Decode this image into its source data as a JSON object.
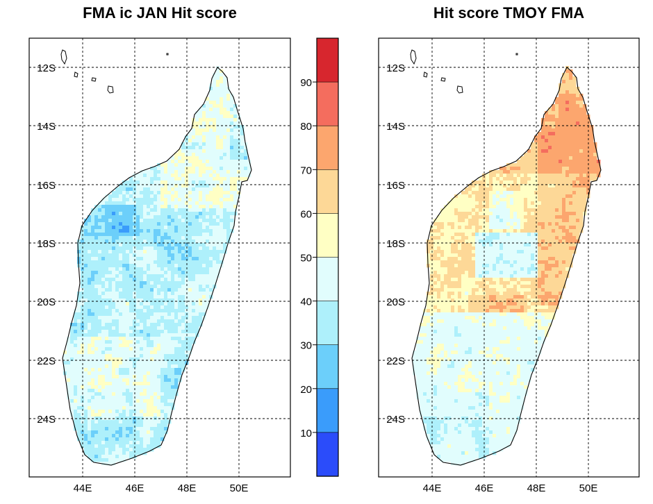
{
  "panels": [
    {
      "id": "left",
      "title": "FMA ic JAN Hit score",
      "lat_labels": [
        "12S",
        "14S",
        "16S",
        "18S",
        "20S",
        "22S",
        "24S"
      ],
      "lon_labels": [
        "44E",
        "46E",
        "48E",
        "50E"
      ],
      "lon_range": [
        42,
        52
      ],
      "lat_range": [
        -26.5,
        -11
      ],
      "dominant_range": "30-50 (blue / light blue), with 50-60 (yellow) patches in the north and south-west"
    },
    {
      "id": "right",
      "title": "Hit score TMOY FMA",
      "lat_labels": [
        "12S",
        "14S",
        "16S",
        "18S",
        "20S",
        "22S",
        "24S"
      ],
      "lon_labels": [
        "44E",
        "46E",
        "48E",
        "50E"
      ],
      "lon_range": [
        42,
        52
      ],
      "lat_range": [
        -26.5,
        -11
      ],
      "dominant_range": "60-70 (light orange) in the north, 70-80 along the north-east, 30-50 (blue) in the south"
    }
  ],
  "colorbar": {
    "labels": [
      "90",
      "80",
      "70",
      "60",
      "50",
      "40",
      "30",
      "20",
      "10"
    ],
    "colors": [
      "#d7262e",
      "#f46d5e",
      "#fca66e",
      "#fdd897",
      "#ffffc4",
      "#e1fdfd",
      "#aef0fb",
      "#6ccffa",
      "#3a9cfb",
      "#2b4cfa"
    ]
  },
  "colors": {
    "frame": "#000000",
    "grid": "#000000",
    "coastline": "#000000"
  }
}
